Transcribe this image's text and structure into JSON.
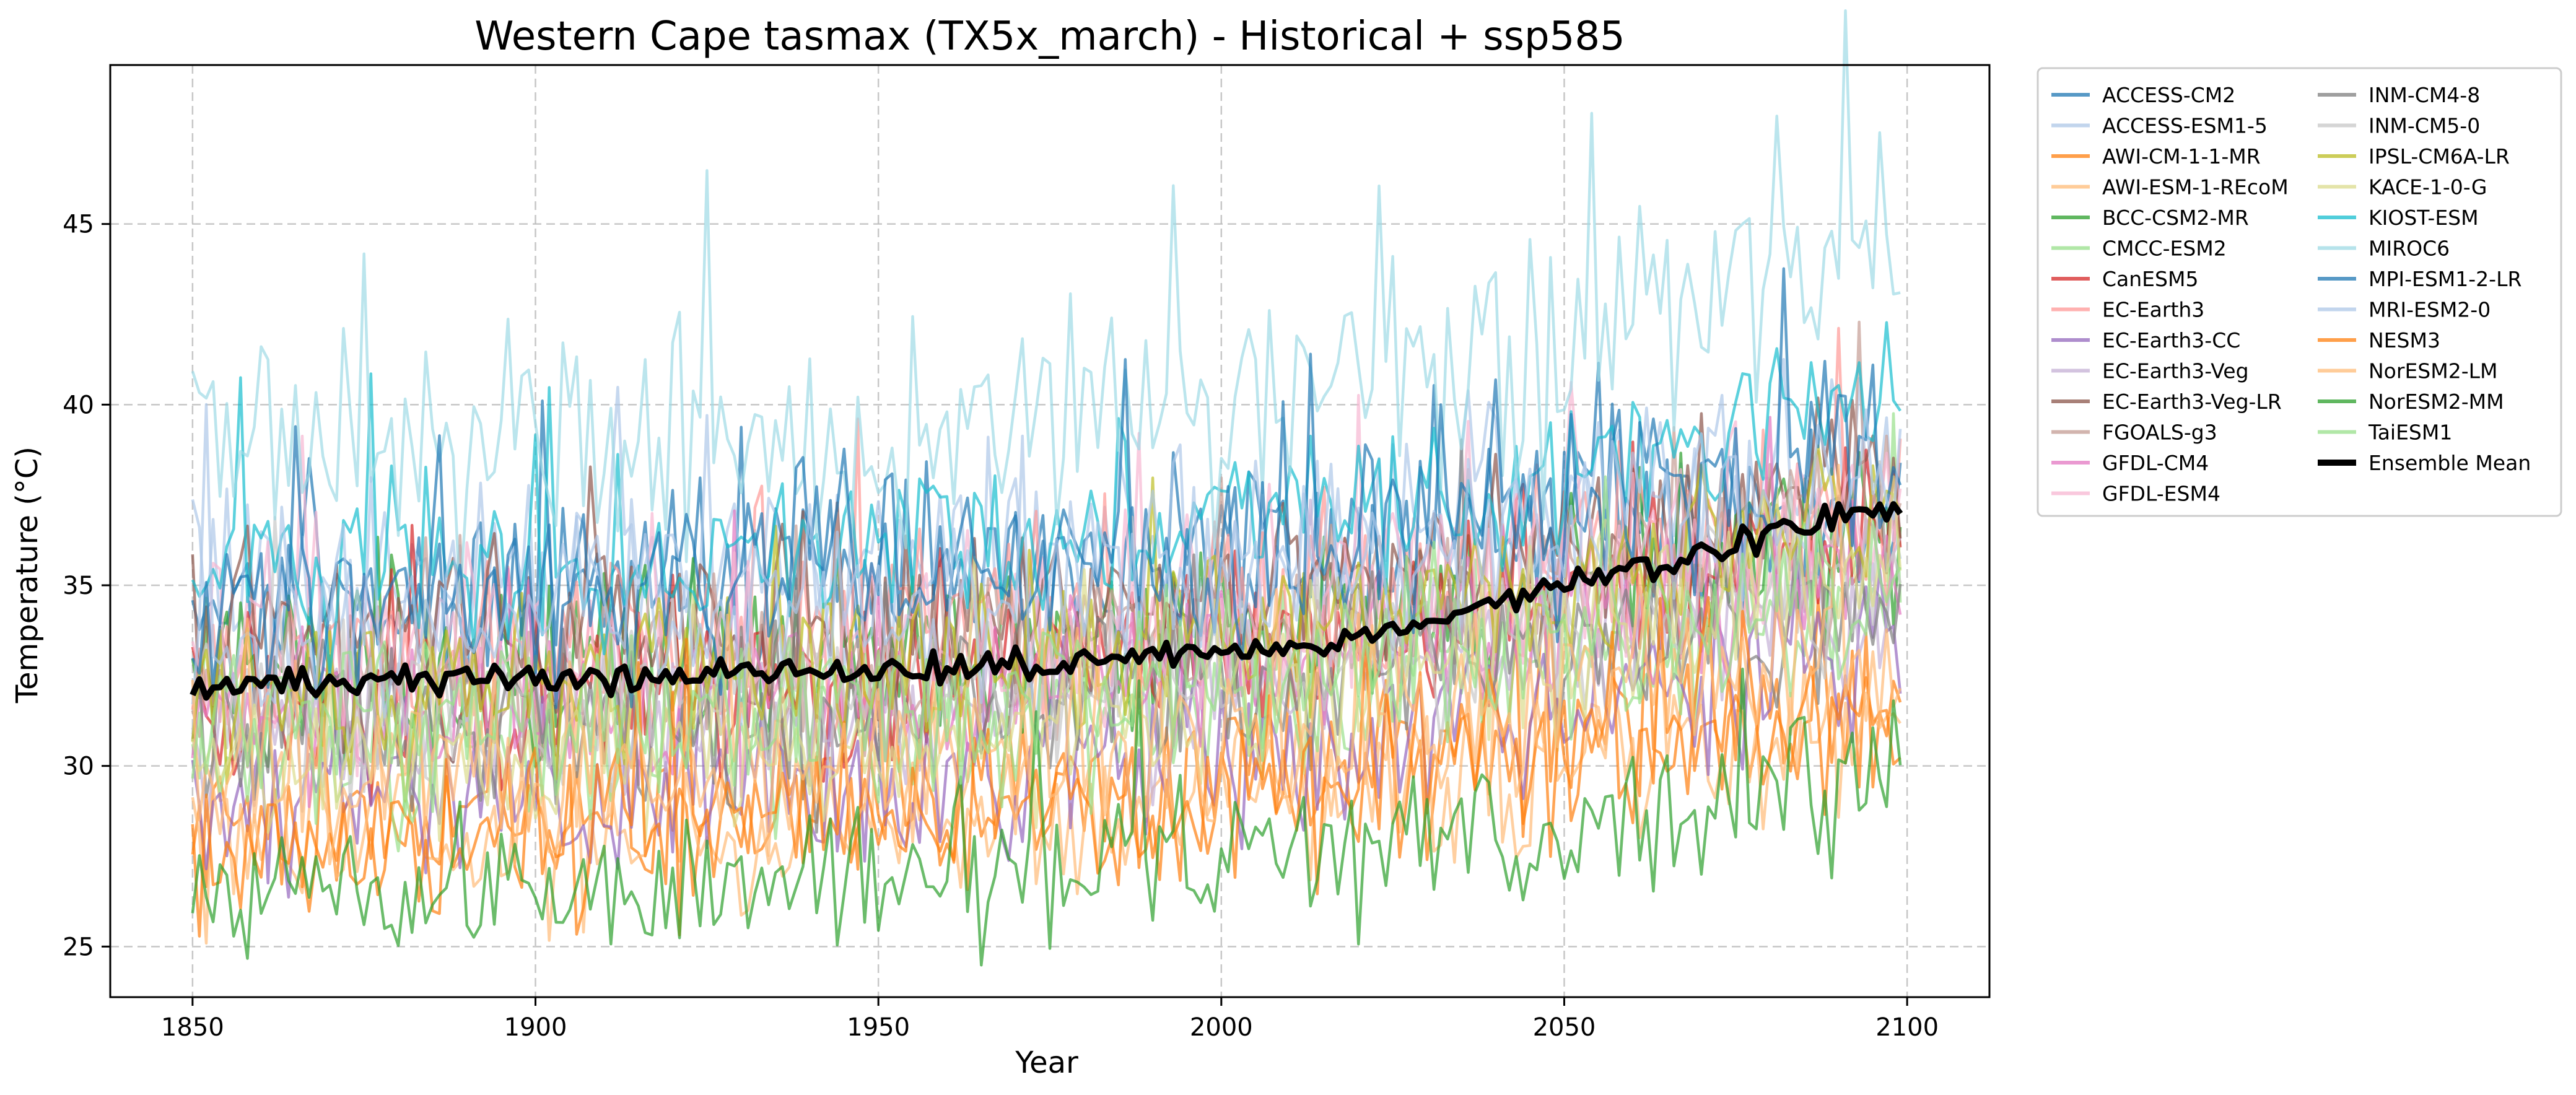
{
  "chart_data": {
    "type": "line",
    "title": "Western Cape tasmax (TX5x_march) - Historical + ssp585",
    "xlabel": "Year",
    "ylabel": "Temperature (°C)",
    "xlim": [
      1838,
      2112
    ],
    "ylim": [
      23.6,
      49.4
    ],
    "xticks": [
      1850,
      1900,
      1950,
      2000,
      2050,
      2100
    ],
    "yticks": [
      25,
      30,
      35,
      40,
      45
    ],
    "x_range": [
      1850,
      2099
    ],
    "grid": true,
    "legend_placement": "outside-right",
    "legend_columns": 2,
    "series": [
      {
        "name": "ACCESS-CM2",
        "color": "#1f77b4",
        "level": [
          34.5,
          35.0,
          36.0,
          37.5
        ],
        "amp": 2.2,
        "seed": 1
      },
      {
        "name": "ACCESS-ESM1-5",
        "color": "#aec7e8",
        "level": [
          35.0,
          35.5,
          36.5,
          38.0
        ],
        "amp": 2.2,
        "seed": 2
      },
      {
        "name": "AWI-CM-1-1-MR",
        "color": "#ff7f0e",
        "level": [
          28.5,
          29.0,
          30.0,
          31.5
        ],
        "amp": 2.0,
        "seed": 3
      },
      {
        "name": "AWI-ESM-1-REcoM",
        "color": "#ffbb78",
        "level": [
          28.0,
          28.5,
          29.5,
          31.0
        ],
        "amp": 2.0,
        "seed": 4
      },
      {
        "name": "BCC-CSM2-MR",
        "color": "#2ca02c",
        "level": [
          32.5,
          33.0,
          34.0,
          36.5
        ],
        "amp": 2.2,
        "seed": 5
      },
      {
        "name": "CMCC-ESM2",
        "color": "#98df8a",
        "level": [
          30.5,
          31.0,
          32.0,
          34.5
        ],
        "amp": 2.0,
        "seed": 6
      },
      {
        "name": "CanESM5",
        "color": "#d62728",
        "level": [
          31.5,
          32.0,
          33.5,
          36.5
        ],
        "amp": 2.0,
        "seed": 7
      },
      {
        "name": "EC-Earth3",
        "color": "#ff9896",
        "level": [
          33.0,
          33.5,
          34.5,
          37.0
        ],
        "amp": 2.2,
        "seed": 8
      },
      {
        "name": "EC-Earth3-CC",
        "color": "#9467bd",
        "level": [
          29.0,
          29.5,
          30.5,
          33.0
        ],
        "amp": 2.0,
        "seed": 9
      },
      {
        "name": "EC-Earth3-Veg",
        "color": "#c5b0d5",
        "level": [
          31.0,
          31.5,
          32.5,
          35.0
        ],
        "amp": 2.0,
        "seed": 10
      },
      {
        "name": "EC-Earth3-Veg-LR",
        "color": "#8c564b",
        "level": [
          33.5,
          34.0,
          35.0,
          38.0
        ],
        "amp": 2.2,
        "seed": 11
      },
      {
        "name": "FGOALS-g3",
        "color": "#c49c94",
        "level": [
          32.5,
          33.0,
          34.0,
          36.5
        ],
        "amp": 2.0,
        "seed": 12
      },
      {
        "name": "GFDL-CM4",
        "color": "#e377c2",
        "level": [
          31.5,
          32.0,
          33.0,
          35.5
        ],
        "amp": 2.0,
        "seed": 13
      },
      {
        "name": "GFDL-ESM4",
        "color": "#f7b6d2",
        "level": [
          33.0,
          33.5,
          34.5,
          37.0
        ],
        "amp": 2.2,
        "seed": 14
      },
      {
        "name": "INM-CM4-8",
        "color": "#7f7f7f",
        "level": [
          31.0,
          31.5,
          32.5,
          34.5
        ],
        "amp": 2.0,
        "seed": 15
      },
      {
        "name": "INM-CM5-0",
        "color": "#c7c7c7",
        "level": [
          31.5,
          32.0,
          33.0,
          35.0
        ],
        "amp": 2.0,
        "seed": 16
      },
      {
        "name": "IPSL-CM6A-LR",
        "color": "#bcbd22",
        "level": [
          32.0,
          32.5,
          34.0,
          37.0
        ],
        "amp": 2.0,
        "seed": 17
      },
      {
        "name": "KACE-1-0-G",
        "color": "#dbdb8d",
        "level": [
          30.0,
          30.5,
          32.0,
          35.5
        ],
        "amp": 2.0,
        "seed": 18
      },
      {
        "name": "KIOST-ESM",
        "color": "#17becf",
        "level": [
          35.5,
          36.0,
          37.0,
          40.0
        ],
        "amp": 2.0,
        "seed": 19
      },
      {
        "name": "MIROC6",
        "color": "#9edae5",
        "level": [
          38.5,
          39.0,
          40.0,
          44.0
        ],
        "amp": 2.8,
        "seed": 20
      },
      {
        "name": "MPI-ESM1-2-LR",
        "color": "#1f77b4",
        "level": [
          34.5,
          35.0,
          36.0,
          39.0
        ],
        "amp": 2.2,
        "seed": 21
      },
      {
        "name": "MRI-ESM2-0",
        "color": "#aec7e8",
        "level": [
          34.0,
          34.5,
          35.5,
          38.0
        ],
        "amp": 2.2,
        "seed": 22
      },
      {
        "name": "NESM3",
        "color": "#ff7f0e",
        "level": [
          28.0,
          28.5,
          29.5,
          31.5
        ],
        "amp": 2.0,
        "seed": 23
      },
      {
        "name": "NorESM2-LM",
        "color": "#ffbb78",
        "level": [
          29.5,
          30.0,
          31.0,
          33.5
        ],
        "amp": 2.0,
        "seed": 24
      },
      {
        "name": "NorESM2-MM",
        "color": "#2ca02c",
        "level": [
          26.5,
          26.8,
          27.5,
          29.5
        ],
        "amp": 1.8,
        "seed": 25
      },
      {
        "name": "TaiESM1",
        "color": "#98df8a",
        "level": [
          31.0,
          31.5,
          32.5,
          35.0
        ],
        "amp": 2.0,
        "seed": 26
      },
      {
        "name": "Ensemble Mean",
        "color": "#000000",
        "level": [
          32.2,
          32.6,
          33.3,
          37.3
        ],
        "amp": 0.35,
        "seed": 99
      }
    ]
  }
}
